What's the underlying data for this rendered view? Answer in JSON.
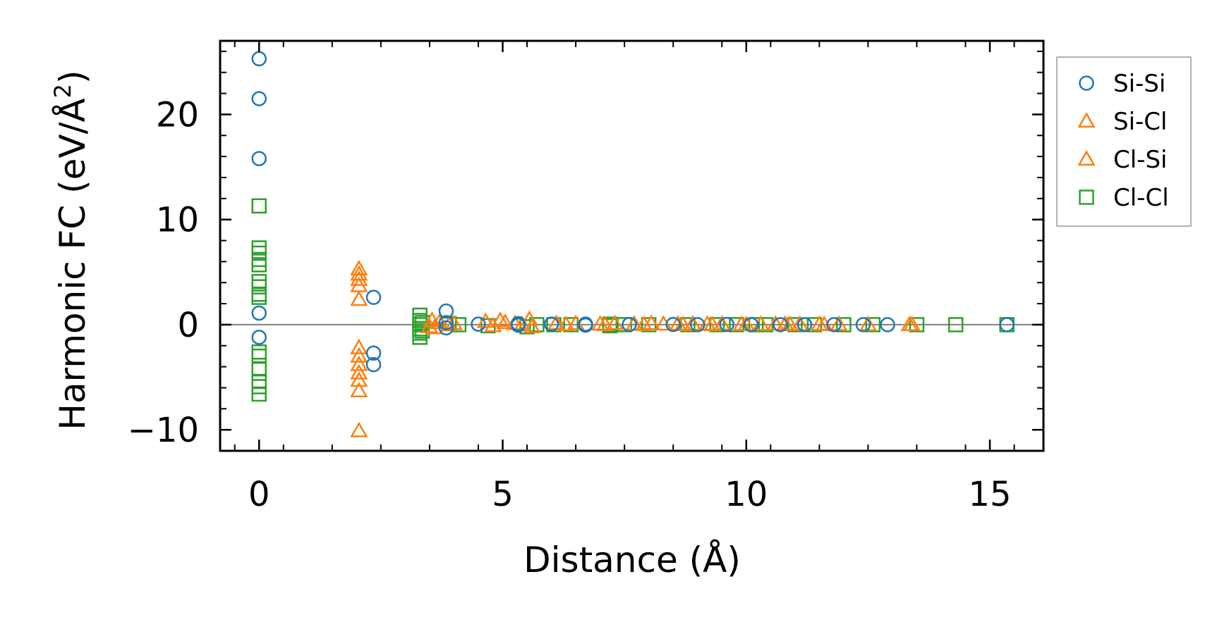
{
  "chart_data": {
    "type": "scatter",
    "xlabel": "Distance (Å)",
    "ylabel_text": "Harmonic FC (eV/Å",
    "ylabel_sup": "2",
    "ylabel_close": ")",
    "xlim": [
      -0.8,
      16.1
    ],
    "ylim": [
      -12,
      27
    ],
    "x_ticks": [
      0,
      5,
      10,
      15
    ],
    "x_tick_labels": [
      "0",
      "5",
      "10",
      "15"
    ],
    "y_ticks": [
      -10,
      0,
      10,
      20
    ],
    "y_tick_labels": [
      "−10",
      "0",
      "10",
      "20"
    ],
    "zero_line": 0,
    "legend_position": "outside right, top",
    "series": [
      {
        "name": "Si-Si",
        "marker": "circle",
        "color": "#1f77b4",
        "points": [
          [
            0,
            25.3
          ],
          [
            0,
            21.5
          ],
          [
            0,
            15.8
          ],
          [
            0,
            1.1
          ],
          [
            0,
            -1.2
          ],
          [
            2.35,
            2.6
          ],
          [
            2.35,
            -2.7
          ],
          [
            2.35,
            -3.8
          ],
          [
            3.84,
            1.3
          ],
          [
            3.84,
            -0.3
          ],
          [
            3.84,
            0.2
          ],
          [
            4.5,
            0.05
          ],
          [
            5.32,
            0.1
          ],
          [
            5.32,
            -0.05
          ],
          [
            6.0,
            0.05
          ],
          [
            6.7,
            0.05
          ],
          [
            6.7,
            -0.05
          ],
          [
            7.6,
            0.02
          ],
          [
            8.5,
            0.02
          ],
          [
            9.0,
            0.0
          ],
          [
            9.6,
            0.02
          ],
          [
            10.1,
            0.0
          ],
          [
            10.7,
            0.0
          ],
          [
            11.2,
            0.0
          ],
          [
            11.8,
            0.0
          ],
          [
            12.4,
            0.0
          ],
          [
            12.9,
            0.0
          ],
          [
            15.35,
            0.0
          ]
        ]
      },
      {
        "name": "Si-Cl",
        "marker": "triangle",
        "color": "#ff7f0e",
        "points": [
          [
            2.05,
            5.3
          ],
          [
            2.05,
            4.8
          ],
          [
            2.05,
            4.3
          ],
          [
            2.05,
            3.7
          ],
          [
            2.05,
            2.4
          ],
          [
            2.05,
            -2.2
          ],
          [
            2.05,
            -3.0
          ],
          [
            2.05,
            -3.8
          ],
          [
            2.05,
            -4.6
          ],
          [
            2.05,
            -5.3
          ],
          [
            2.05,
            -6.3
          ],
          [
            2.05,
            -10.1
          ],
          [
            3.55,
            0.4
          ],
          [
            3.6,
            -0.3
          ],
          [
            3.7,
            0.2
          ],
          [
            4.0,
            0.1
          ],
          [
            4.65,
            0.3
          ],
          [
            4.95,
            0.4
          ],
          [
            5.05,
            0.2
          ],
          [
            5.25,
            0.1
          ],
          [
            5.55,
            0.5
          ],
          [
            5.6,
            -0.2
          ],
          [
            6.1,
            0.1
          ],
          [
            6.5,
            0.1
          ],
          [
            7.0,
            0.05
          ],
          [
            7.3,
            0.1
          ],
          [
            7.7,
            0.05
          ],
          [
            8.05,
            0.1
          ],
          [
            8.3,
            0.05
          ],
          [
            8.6,
            0.05
          ],
          [
            8.9,
            0.05
          ],
          [
            9.2,
            0.05
          ],
          [
            9.5,
            0.05
          ],
          [
            9.9,
            0.02
          ],
          [
            10.3,
            0.02
          ],
          [
            10.6,
            0.05
          ],
          [
            10.8,
            0.05
          ],
          [
            11.1,
            0.02
          ],
          [
            11.5,
            0.02
          ],
          [
            11.9,
            0.02
          ],
          [
            12.5,
            0.0
          ],
          [
            13.35,
            0.0
          ]
        ]
      },
      {
        "name": "Cl-Si",
        "marker": "triangle",
        "color": "#ff7f0e",
        "points": [
          [
            3.5,
            -0.2
          ],
          [
            3.9,
            0.0
          ],
          [
            4.8,
            -0.1
          ],
          [
            5.4,
            0.0
          ],
          [
            6.3,
            0.0
          ],
          [
            7.1,
            0.0
          ],
          [
            7.9,
            0.0
          ],
          [
            8.7,
            0.0
          ],
          [
            9.3,
            0.0
          ],
          [
            10.0,
            0.0
          ],
          [
            10.9,
            0.0
          ],
          [
            11.6,
            0.0
          ],
          [
            13.4,
            0.0
          ]
        ]
      },
      {
        "name": "Cl-Cl",
        "marker": "square",
        "color": "#2ca02c",
        "points": [
          [
            0,
            11.3
          ],
          [
            0,
            7.3
          ],
          [
            0,
            6.8
          ],
          [
            0,
            6.2
          ],
          [
            0,
            5.7
          ],
          [
            0,
            4.1
          ],
          [
            0,
            3.6
          ],
          [
            0,
            2.9
          ],
          [
            0,
            2.6
          ],
          [
            0,
            -2.6
          ],
          [
            0,
            -3.0
          ],
          [
            0,
            -4.2
          ],
          [
            0,
            -5.4
          ],
          [
            0,
            -5.9
          ],
          [
            0,
            -6.6
          ],
          [
            3.3,
            0.9
          ],
          [
            3.3,
            0.4
          ],
          [
            3.3,
            0.0
          ],
          [
            3.3,
            -0.4
          ],
          [
            3.3,
            -0.8
          ],
          [
            3.3,
            -1.2
          ],
          [
            3.35,
            0.2
          ],
          [
            3.35,
            -0.6
          ],
          [
            3.9,
            0.1
          ],
          [
            4.1,
            0.0
          ],
          [
            4.7,
            -0.1
          ],
          [
            5.5,
            -0.2
          ],
          [
            5.7,
            0.0
          ],
          [
            6.05,
            0.0
          ],
          [
            6.4,
            0.0
          ],
          [
            7.2,
            0.05
          ],
          [
            7.2,
            -0.1
          ],
          [
            7.5,
            0.0
          ],
          [
            8.0,
            0.0
          ],
          [
            8.8,
            0.0
          ],
          [
            9.4,
            0.0
          ],
          [
            9.8,
            0.0
          ],
          [
            10.2,
            0.0
          ],
          [
            10.4,
            0.0
          ],
          [
            11.0,
            0.0
          ],
          [
            11.4,
            0.0
          ],
          [
            12.0,
            0.0
          ],
          [
            12.6,
            0.0
          ],
          [
            13.5,
            0.0
          ],
          [
            14.3,
            0.0
          ],
          [
            15.35,
            0.0
          ]
        ]
      }
    ]
  }
}
